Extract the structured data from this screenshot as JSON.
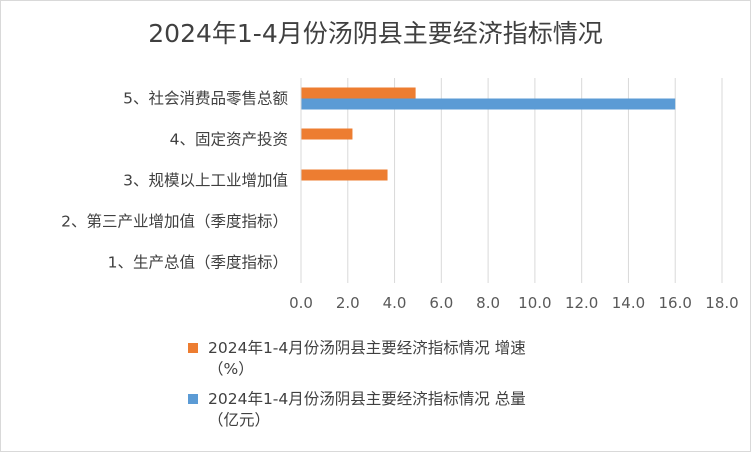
{
  "chart_data": {
    "type": "bar",
    "orientation": "horizontal",
    "title": "2024年1-4月份汤阴县主要经济指标情况",
    "categories": [
      "5、社会消费品零售总额",
      "4、固定资产投资",
      "3、规模以上工业增加值",
      "2、第三产业增加值（季度指标）",
      "1、生产总值（季度指标）"
    ],
    "series": [
      {
        "name": "2024年1-4月份汤阴县主要经济指标情况 增速（%）",
        "color": "#ed7d31",
        "values": [
          4.9,
          2.2,
          3.7,
          null,
          null
        ]
      },
      {
        "name": "2024年1-4月份汤阴县主要经济指标情况 总量（亿元）",
        "color": "#5b9bd5",
        "values": [
          16.0,
          null,
          null,
          null,
          null
        ]
      }
    ],
    "xlim": [
      0,
      18
    ],
    "x_ticks": [
      "0.0",
      "2.0",
      "4.0",
      "6.0",
      "8.0",
      "10.0",
      "12.0",
      "14.0",
      "16.0",
      "18.0"
    ],
    "xlabel": "",
    "ylabel": "",
    "grid": true,
    "legend_position": "bottom"
  },
  "legend": [
    {
      "line1": "2024年1-4月份汤阴县主要经济指标情况 增速",
      "line2": "（%）"
    },
    {
      "line1": "2024年1-4月份汤阴县主要经济指标情况 总量",
      "line2": "（亿元）"
    }
  ]
}
